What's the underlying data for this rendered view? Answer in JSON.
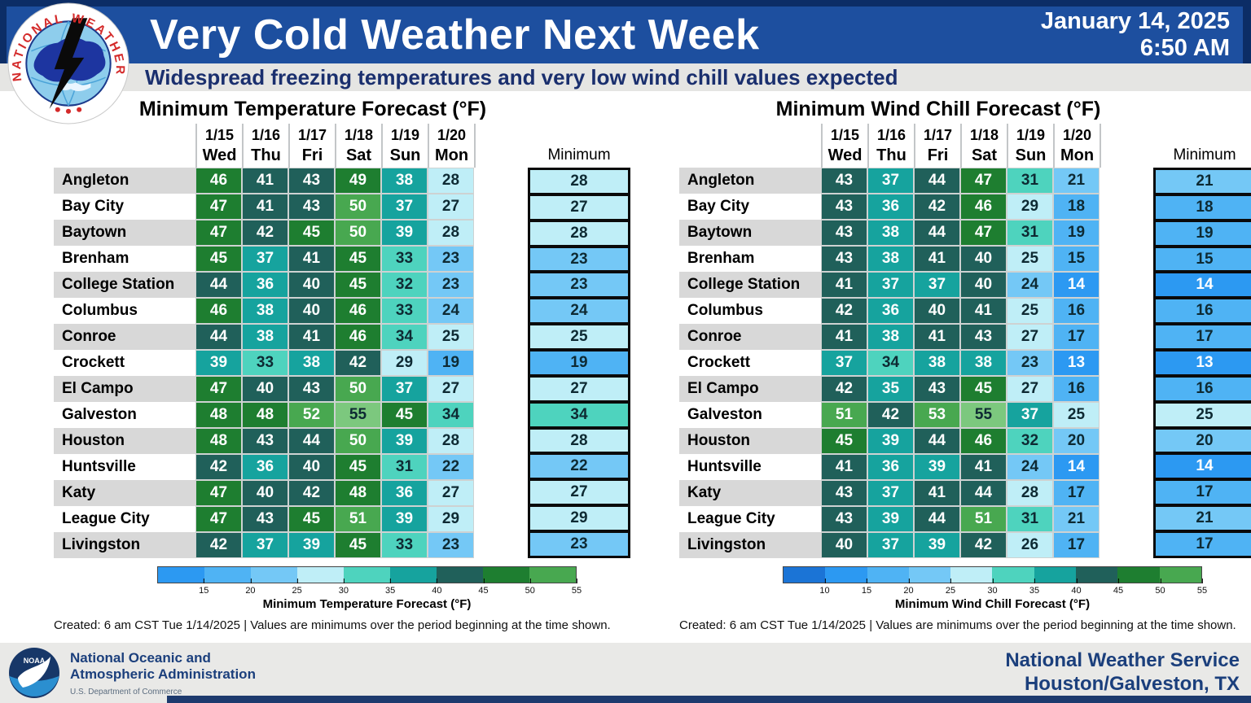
{
  "header": {
    "title": "Very Cold Weather Next Week",
    "date": "January 14, 2025",
    "time": "6:50 AM",
    "subtitle": "Widespread freezing temperatures and very low wind chill values expected"
  },
  "panels": [
    {
      "title": "Minimum Temperature Forecast (°F)",
      "dates": [
        "1/15",
        "1/16",
        "1/17",
        "1/18",
        "1/19",
        "1/20"
      ],
      "days": [
        "Wed",
        "Thu",
        "Fri",
        "Sat",
        "Sun",
        "Mon"
      ],
      "minimum_label": "Minimum",
      "rows": [
        {
          "city": "Angleton",
          "values": [
            46,
            41,
            43,
            49,
            38,
            28
          ],
          "minimum": 28
        },
        {
          "city": "Bay City",
          "values": [
            47,
            41,
            43,
            50,
            37,
            27
          ],
          "minimum": 27
        },
        {
          "city": "Baytown",
          "values": [
            47,
            42,
            45,
            50,
            39,
            28
          ],
          "minimum": 28
        },
        {
          "city": "Brenham",
          "values": [
            45,
            37,
            41,
            45,
            33,
            23
          ],
          "minimum": 23
        },
        {
          "city": "College Station",
          "values": [
            44,
            36,
            40,
            45,
            32,
            23
          ],
          "minimum": 23
        },
        {
          "city": "Columbus",
          "values": [
            46,
            38,
            40,
            46,
            33,
            24
          ],
          "minimum": 24
        },
        {
          "city": "Conroe",
          "values": [
            44,
            38,
            41,
            46,
            34,
            25
          ],
          "minimum": 25
        },
        {
          "city": "Crockett",
          "values": [
            39,
            33,
            38,
            42,
            29,
            19
          ],
          "minimum": 19
        },
        {
          "city": "El Campo",
          "values": [
            47,
            40,
            43,
            50,
            37,
            27
          ],
          "minimum": 27
        },
        {
          "city": "Galveston",
          "values": [
            48,
            48,
            52,
            55,
            45,
            34
          ],
          "minimum": 34
        },
        {
          "city": "Houston",
          "values": [
            48,
            43,
            44,
            50,
            39,
            28
          ],
          "minimum": 28
        },
        {
          "city": "Huntsville",
          "values": [
            42,
            36,
            40,
            45,
            31,
            22
          ],
          "minimum": 22
        },
        {
          "city": "Katy",
          "values": [
            47,
            40,
            42,
            48,
            36,
            27
          ],
          "minimum": 27
        },
        {
          "city": "League City",
          "values": [
            47,
            43,
            45,
            51,
            39,
            29
          ],
          "minimum": 29
        },
        {
          "city": "Livingston",
          "values": [
            42,
            37,
            39,
            45,
            33,
            23
          ],
          "minimum": 23
        }
      ],
      "colorbar": {
        "start": 10,
        "segments": 9,
        "tick_labels": [
          "15",
          "20",
          "25",
          "30",
          "35",
          "40",
          "45",
          "50",
          "55"
        ],
        "caption": "Minimum Temperature Forecast (°F)"
      },
      "created": "Created: 6 am CST Tue 1/14/2025  |  Values are minimums over the period beginning at the time shown."
    },
    {
      "title": "Minimum Wind Chill Forecast (°F)",
      "dates": [
        "1/15",
        "1/16",
        "1/17",
        "1/18",
        "1/19",
        "1/20"
      ],
      "days": [
        "Wed",
        "Thu",
        "Fri",
        "Sat",
        "Sun",
        "Mon"
      ],
      "minimum_label": "Minimum",
      "rows": [
        {
          "city": "Angleton",
          "values": [
            43,
            37,
            44,
            47,
            31,
            21
          ],
          "minimum": 21
        },
        {
          "city": "Bay City",
          "values": [
            43,
            36,
            42,
            46,
            29,
            18
          ],
          "minimum": 18
        },
        {
          "city": "Baytown",
          "values": [
            43,
            38,
            44,
            47,
            31,
            19
          ],
          "minimum": 19
        },
        {
          "city": "Brenham",
          "values": [
            43,
            38,
            41,
            40,
            25,
            15
          ],
          "minimum": 15
        },
        {
          "city": "College Station",
          "values": [
            41,
            37,
            37,
            40,
            24,
            14
          ],
          "minimum": 14
        },
        {
          "city": "Columbus",
          "values": [
            42,
            36,
            40,
            41,
            25,
            16
          ],
          "minimum": 16
        },
        {
          "city": "Conroe",
          "values": [
            41,
            38,
            41,
            43,
            27,
            17
          ],
          "minimum": 17
        },
        {
          "city": "Crockett",
          "values": [
            37,
            34,
            38,
            38,
            23,
            13
          ],
          "minimum": 13
        },
        {
          "city": "El Campo",
          "values": [
            42,
            35,
            43,
            45,
            27,
            16
          ],
          "minimum": 16
        },
        {
          "city": "Galveston",
          "values": [
            51,
            42,
            53,
            55,
            37,
            25
          ],
          "minimum": 25
        },
        {
          "city": "Houston",
          "values": [
            45,
            39,
            44,
            46,
            32,
            20
          ],
          "minimum": 20
        },
        {
          "city": "Huntsville",
          "values": [
            41,
            36,
            39,
            41,
            24,
            14
          ],
          "minimum": 14
        },
        {
          "city": "Katy",
          "values": [
            43,
            37,
            41,
            44,
            28,
            17
          ],
          "minimum": 17
        },
        {
          "city": "League City",
          "values": [
            43,
            39,
            44,
            51,
            31,
            21
          ],
          "minimum": 21
        },
        {
          "city": "Livingston",
          "values": [
            40,
            37,
            39,
            42,
            26,
            17
          ],
          "minimum": 17
        }
      ],
      "colorbar": {
        "start": 5,
        "segments": 10,
        "tick_labels": [
          "10",
          "15",
          "20",
          "25",
          "30",
          "35",
          "40",
          "45",
          "50",
          "55"
        ],
        "caption": "Minimum Wind Chill Forecast (°F)"
      },
      "created": "Created: 6 am CST Tue 1/14/2025  |  Values are minimums over the period beginning at the time shown."
    }
  ],
  "scale": {
    "bins": [
      {
        "from": 5,
        "color": "#1b74d6",
        "text": "#ffffff"
      },
      {
        "from": 10,
        "color": "#2c99f2",
        "text": "#ffffff"
      },
      {
        "from": 15,
        "color": "#4fb3f4",
        "text": "#0e2a33"
      },
      {
        "from": 20,
        "color": "#74c8f6",
        "text": "#0e2a33"
      },
      {
        "from": 25,
        "color": "#bfeef7",
        "text": "#0e2a33"
      },
      {
        "from": 30,
        "color": "#4ed3be",
        "text": "#0e2a33"
      },
      {
        "from": 35,
        "color": "#16a39e",
        "text": "#ffffff"
      },
      {
        "from": 40,
        "color": "#20605a",
        "text": "#ffffff"
      },
      {
        "from": 45,
        "color": "#1e7e30",
        "text": "#ffffff"
      },
      {
        "from": 50,
        "color": "#48a850",
        "text": "#ffffff"
      },
      {
        "from": 55,
        "color": "#7cc87e",
        "text": "#0e2a33"
      }
    ]
  },
  "footer": {
    "noaa_line1": "National Oceanic and",
    "noaa_line2": "Atmospheric Administration",
    "commerce": "U.S. Department of Commerce",
    "office_line1": "National Weather Service",
    "office_line2": "Houston/Galveston, TX"
  },
  "chart_data": [
    {
      "type": "heatmap",
      "title": "Minimum Temperature Forecast (°F)",
      "columns": [
        "1/15 Wed",
        "1/16 Thu",
        "1/17 Fri",
        "1/18 Sat",
        "1/19 Sun",
        "1/20 Mon",
        "Minimum"
      ],
      "rows": [
        "Angleton",
        "Bay City",
        "Baytown",
        "Brenham",
        "College Station",
        "Columbus",
        "Conroe",
        "Crockett",
        "El Campo",
        "Galveston",
        "Houston",
        "Huntsville",
        "Katy",
        "League City",
        "Livingston"
      ],
      "values": [
        [
          46,
          41,
          43,
          49,
          38,
          28,
          28
        ],
        [
          47,
          41,
          43,
          50,
          37,
          27,
          27
        ],
        [
          47,
          42,
          45,
          50,
          39,
          28,
          28
        ],
        [
          45,
          37,
          41,
          45,
          33,
          23,
          23
        ],
        [
          44,
          36,
          40,
          45,
          32,
          23,
          23
        ],
        [
          46,
          38,
          40,
          46,
          33,
          24,
          24
        ],
        [
          44,
          38,
          41,
          46,
          34,
          25,
          25
        ],
        [
          39,
          33,
          38,
          42,
          29,
          19,
          19
        ],
        [
          47,
          40,
          43,
          50,
          37,
          27,
          27
        ],
        [
          48,
          48,
          52,
          55,
          45,
          34,
          34
        ],
        [
          48,
          43,
          44,
          50,
          39,
          28,
          28
        ],
        [
          42,
          36,
          40,
          45,
          31,
          22,
          22
        ],
        [
          47,
          40,
          42,
          48,
          36,
          27,
          27
        ],
        [
          47,
          43,
          45,
          51,
          39,
          29,
          29
        ],
        [
          42,
          37,
          39,
          45,
          33,
          23,
          23
        ]
      ],
      "colorbar": {
        "label": "Minimum Temperature Forecast (°F)",
        "ticks": [
          15,
          20,
          25,
          30,
          35,
          40,
          45,
          50,
          55
        ],
        "range": [
          10,
          55
        ]
      },
      "legend_position": "bottom"
    },
    {
      "type": "heatmap",
      "title": "Minimum Wind Chill Forecast (°F)",
      "columns": [
        "1/15 Wed",
        "1/16 Thu",
        "1/17 Fri",
        "1/18 Sat",
        "1/19 Sun",
        "1/20 Mon",
        "Minimum"
      ],
      "rows": [
        "Angleton",
        "Bay City",
        "Baytown",
        "Brenham",
        "College Station",
        "Columbus",
        "Conroe",
        "Crockett",
        "El Campo",
        "Galveston",
        "Houston",
        "Huntsville",
        "Katy",
        "League City",
        "Livingston"
      ],
      "values": [
        [
          43,
          37,
          44,
          47,
          31,
          21,
          21
        ],
        [
          43,
          36,
          42,
          46,
          29,
          18,
          18
        ],
        [
          43,
          38,
          44,
          47,
          31,
          19,
          19
        ],
        [
          43,
          38,
          41,
          40,
          25,
          15,
          15
        ],
        [
          41,
          37,
          37,
          40,
          24,
          14,
          14
        ],
        [
          42,
          36,
          40,
          41,
          25,
          16,
          16
        ],
        [
          41,
          38,
          41,
          43,
          27,
          17,
          17
        ],
        [
          37,
          34,
          38,
          38,
          23,
          13,
          13
        ],
        [
          42,
          35,
          43,
          45,
          27,
          16,
          16
        ],
        [
          51,
          42,
          53,
          55,
          37,
          25,
          25
        ],
        [
          45,
          39,
          44,
          46,
          32,
          20,
          20
        ],
        [
          41,
          36,
          39,
          41,
          24,
          14,
          14
        ],
        [
          43,
          37,
          41,
          44,
          28,
          17,
          17
        ],
        [
          43,
          39,
          44,
          51,
          31,
          21,
          21
        ],
        [
          40,
          37,
          39,
          42,
          26,
          17,
          17
        ]
      ],
      "colorbar": {
        "label": "Minimum Wind Chill Forecast (°F)",
        "ticks": [
          10,
          15,
          20,
          25,
          30,
          35,
          40,
          45,
          50,
          55
        ],
        "range": [
          5,
          55
        ]
      },
      "legend_position": "bottom"
    }
  ]
}
